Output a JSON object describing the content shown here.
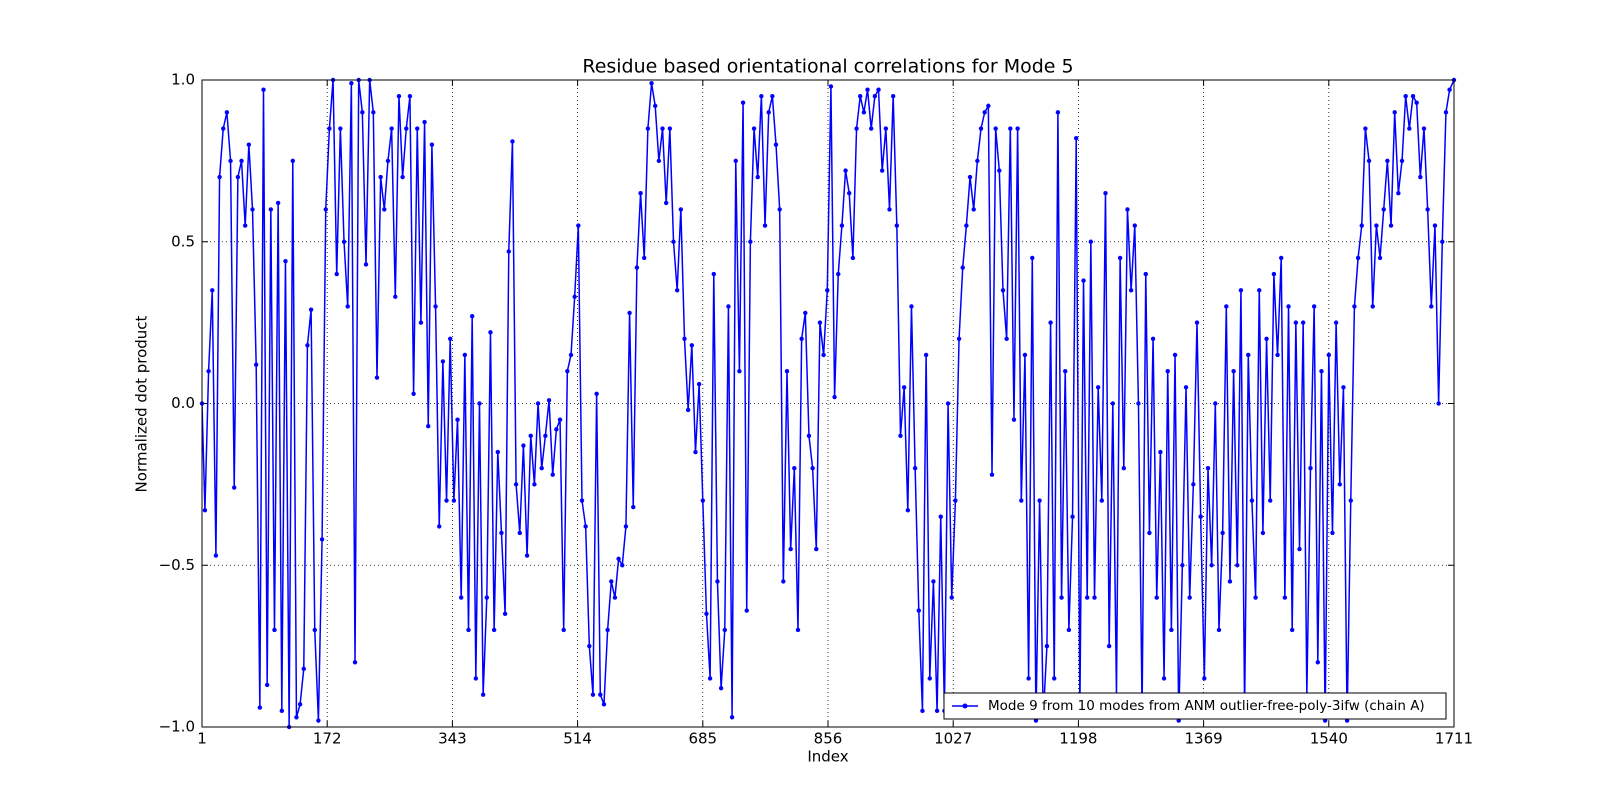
{
  "chart_data": {
    "type": "line",
    "title": "Residue based orientational correlations for Mode 5",
    "x_label": "Index",
    "y_label": "Normalized dot product",
    "x": [
      1,
      5,
      10,
      15,
      20,
      25,
      30,
      35,
      40,
      45,
      50,
      55,
      60,
      65,
      70,
      75,
      80,
      85,
      90,
      95,
      100,
      105,
      110,
      115,
      120,
      125,
      130,
      135,
      140,
      145,
      150,
      155,
      160,
      165,
      170,
      175,
      180,
      185,
      190,
      195,
      200,
      205,
      210,
      215,
      220,
      225,
      230,
      235,
      240,
      245,
      250,
      255,
      260,
      265,
      270,
      275,
      280,
      285,
      290,
      295,
      300,
      305,
      310,
      315,
      320,
      325,
      330,
      335,
      340,
      345,
      350,
      355,
      360,
      365,
      370,
      375,
      380,
      385,
      390,
      395,
      400,
      405,
      410,
      415,
      420,
      425,
      430,
      435,
      440,
      445,
      450,
      455,
      460,
      465,
      470,
      475,
      480,
      485,
      490,
      495,
      500,
      505,
      510,
      515,
      520,
      525,
      530,
      535,
      540,
      545,
      550,
      555,
      560,
      565,
      570,
      575,
      580,
      585,
      590,
      595,
      600,
      605,
      610,
      615,
      620,
      625,
      630,
      635,
      640,
      645,
      650,
      655,
      660,
      665,
      670,
      675,
      680,
      685,
      690,
      695,
      700,
      705,
      710,
      715,
      720,
      725,
      730,
      735,
      740,
      745,
      750,
      755,
      760,
      765,
      770,
      775,
      780,
      785,
      790,
      795,
      800,
      805,
      810,
      815,
      820,
      825,
      830,
      835,
      840,
      845,
      850,
      855,
      860,
      865,
      870,
      875,
      880,
      885,
      890,
      895,
      900,
      905,
      910,
      915,
      920,
      925,
      930,
      935,
      940,
      945,
      950,
      955,
      960,
      965,
      970,
      975,
      980,
      985,
      990,
      995,
      1000,
      1005,
      1010,
      1015,
      1020,
      1025,
      1030,
      1035,
      1040,
      1045,
      1050,
      1055,
      1060,
      1065,
      1070,
      1075,
      1080,
      1085,
      1090,
      1095,
      1100,
      1105,
      1110,
      1115,
      1120,
      1125,
      1130,
      1135,
      1140,
      1145,
      1150,
      1155,
      1160,
      1165,
      1170,
      1175,
      1180,
      1185,
      1190,
      1195,
      1200,
      1205,
      1210,
      1215,
      1220,
      1225,
      1230,
      1235,
      1240,
      1245,
      1250,
      1255,
      1260,
      1265,
      1270,
      1275,
      1280,
      1285,
      1290,
      1295,
      1300,
      1305,
      1310,
      1315,
      1320,
      1325,
      1330,
      1335,
      1340,
      1345,
      1350,
      1355,
      1360,
      1365,
      1370,
      1375,
      1380,
      1385,
      1390,
      1395,
      1400,
      1405,
      1410,
      1415,
      1420,
      1425,
      1430,
      1435,
      1440,
      1445,
      1450,
      1455,
      1460,
      1465,
      1470,
      1475,
      1480,
      1485,
      1490,
      1495,
      1500,
      1505,
      1510,
      1515,
      1520,
      1525,
      1530,
      1535,
      1540,
      1545,
      1550,
      1555,
      1560,
      1565,
      1570,
      1575,
      1580,
      1585,
      1590,
      1595,
      1600,
      1605,
      1610,
      1615,
      1620,
      1625,
      1630,
      1635,
      1640,
      1645,
      1650,
      1655,
      1660,
      1665,
      1670,
      1675,
      1680,
      1685,
      1690,
      1695,
      1700,
      1705,
      1711
    ],
    "series": [
      {
        "name": "Mode 9 from 10 modes from ANM outlier-free-poly-3ifw (chain A)",
        "color": "#0000ff",
        "values": [
          0,
          -0.33,
          0.1,
          0.35,
          -0.47,
          0.7,
          0.85,
          0.9,
          0.75,
          -0.26,
          0.7,
          0.75,
          0.55,
          0.8,
          0.6,
          0.12,
          -0.94,
          0.97,
          -0.87,
          0.6,
          -0.7,
          0.62,
          -0.95,
          0.44,
          -1.0,
          0.75,
          -0.97,
          -0.93,
          -0.82,
          0.18,
          0.29,
          -0.7,
          -0.98,
          -0.42,
          0.6,
          0.85,
          1.0,
          0.4,
          0.85,
          0.5,
          0.3,
          0.99,
          -0.8,
          1.0,
          0.9,
          0.43,
          1.0,
          0.9,
          0.08,
          0.7,
          0.6,
          0.75,
          0.85,
          0.33,
          0.95,
          0.7,
          0.85,
          0.95,
          0.03,
          0.85,
          0.25,
          0.87,
          -0.07,
          0.8,
          0.3,
          -0.38,
          0.13,
          -0.3,
          0.2,
          -0.3,
          -0.05,
          -0.6,
          0.15,
          -0.7,
          0.27,
          -0.85,
          0.0,
          -0.9,
          -0.6,
          0.22,
          -0.7,
          -0.15,
          -0.4,
          -0.65,
          0.47,
          0.81,
          -0.25,
          -0.4,
          -0.13,
          -0.47,
          -0.1,
          -0.25,
          0.0,
          -0.2,
          -0.1,
          0.01,
          -0.22,
          -0.08,
          -0.05,
          -0.7,
          0.1,
          0.15,
          0.33,
          0.55,
          -0.3,
          -0.38,
          -0.75,
          -0.9,
          0.03,
          -0.9,
          -0.93,
          -0.7,
          -0.55,
          -0.6,
          -0.48,
          -0.5,
          -0.38,
          0.28,
          -0.32,
          0.42,
          0.65,
          0.45,
          0.85,
          0.99,
          0.92,
          0.75,
          0.85,
          0.62,
          0.85,
          0.5,
          0.35,
          0.6,
          0.2,
          -0.02,
          0.18,
          -0.15,
          0.06,
          -0.3,
          -0.65,
          -0.85,
          0.4,
          -0.55,
          -0.88,
          -0.7,
          0.3,
          -0.97,
          0.75,
          0.1,
          0.93,
          -0.64,
          0.5,
          0.85,
          0.7,
          0.95,
          0.55,
          0.9,
          0.95,
          0.8,
          0.6,
          -0.55,
          0.1,
          -0.45,
          -0.2,
          -0.7,
          0.2,
          0.28,
          -0.1,
          -0.2,
          -0.45,
          0.25,
          0.15,
          0.35,
          0.98,
          0.02,
          0.4,
          0.55,
          0.72,
          0.65,
          0.45,
          0.85,
          0.95,
          0.9,
          0.97,
          0.85,
          0.95,
          0.97,
          0.72,
          0.85,
          0.6,
          0.95,
          0.55,
          -0.1,
          0.05,
          -0.33,
          0.3,
          -0.2,
          -0.64,
          -0.95,
          0.15,
          -0.85,
          -0.55,
          -0.95,
          -0.35,
          -0.95,
          0.0,
          -0.6,
          -0.3,
          0.2,
          0.42,
          0.55,
          0.7,
          0.6,
          0.75,
          0.85,
          0.9,
          0.92,
          -0.22,
          0.85,
          0.72,
          0.35,
          0.2,
          0.85,
          -0.05,
          0.85,
          -0.3,
          0.15,
          -0.85,
          0.45,
          -0.98,
          -0.3,
          -0.97,
          -0.75,
          0.25,
          -0.85,
          0.9,
          -0.6,
          0.1,
          -0.7,
          -0.35,
          0.82,
          -0.95,
          0.38,
          -0.6,
          0.5,
          -0.6,
          0.05,
          -0.3,
          0.65,
          -0.75,
          0.0,
          -0.9,
          0.45,
          -0.2,
          0.6,
          0.35,
          0.55,
          0.0,
          -0.95,
          0.4,
          -0.4,
          0.2,
          -0.6,
          -0.15,
          -0.85,
          0.1,
          -0.7,
          0.15,
          -0.98,
          -0.5,
          0.05,
          -0.6,
          -0.25,
          0.25,
          -0.35,
          -0.85,
          -0.2,
          -0.5,
          0.0,
          -0.7,
          -0.4,
          0.3,
          -0.55,
          0.1,
          -0.5,
          0.35,
          -0.95,
          0.15,
          -0.3,
          -0.6,
          0.35,
          -0.4,
          0.2,
          -0.3,
          0.4,
          0.15,
          0.45,
          -0.6,
          0.3,
          -0.7,
          0.25,
          -0.45,
          0.25,
          -0.9,
          -0.2,
          0.3,
          -0.8,
          0.1,
          -0.98,
          0.15,
          -0.4,
          0.25,
          -0.25,
          0.05,
          -0.98,
          -0.3,
          0.3,
          0.45,
          0.55,
          0.85,
          0.75,
          0.3,
          0.55,
          0.45,
          0.6,
          0.75,
          0.55,
          0.9,
          0.65,
          0.75,
          0.95,
          0.85,
          0.95,
          0.93,
          0.7,
          0.85,
          0.6,
          0.3,
          0.55,
          0.0,
          0.5,
          0.9,
          0.97,
          1.0
        ]
      }
    ],
    "xlim": [
      1,
      1711
    ],
    "xticks": [
      1,
      172,
      343,
      514,
      685,
      856,
      1027,
      1198,
      1369,
      1540,
      1711
    ],
    "ylim": [
      -1,
      1
    ],
    "yticks": [
      {
        "value": -1,
        "label": "−1.0"
      },
      {
        "value": -0.5,
        "label": "−0.5"
      },
      {
        "value": 0,
        "label": "0.0"
      },
      {
        "value": 0.5,
        "label": "0.5"
      },
      {
        "value": 1,
        "label": "1.0"
      }
    ],
    "grid": true,
    "legend": "lower right"
  }
}
